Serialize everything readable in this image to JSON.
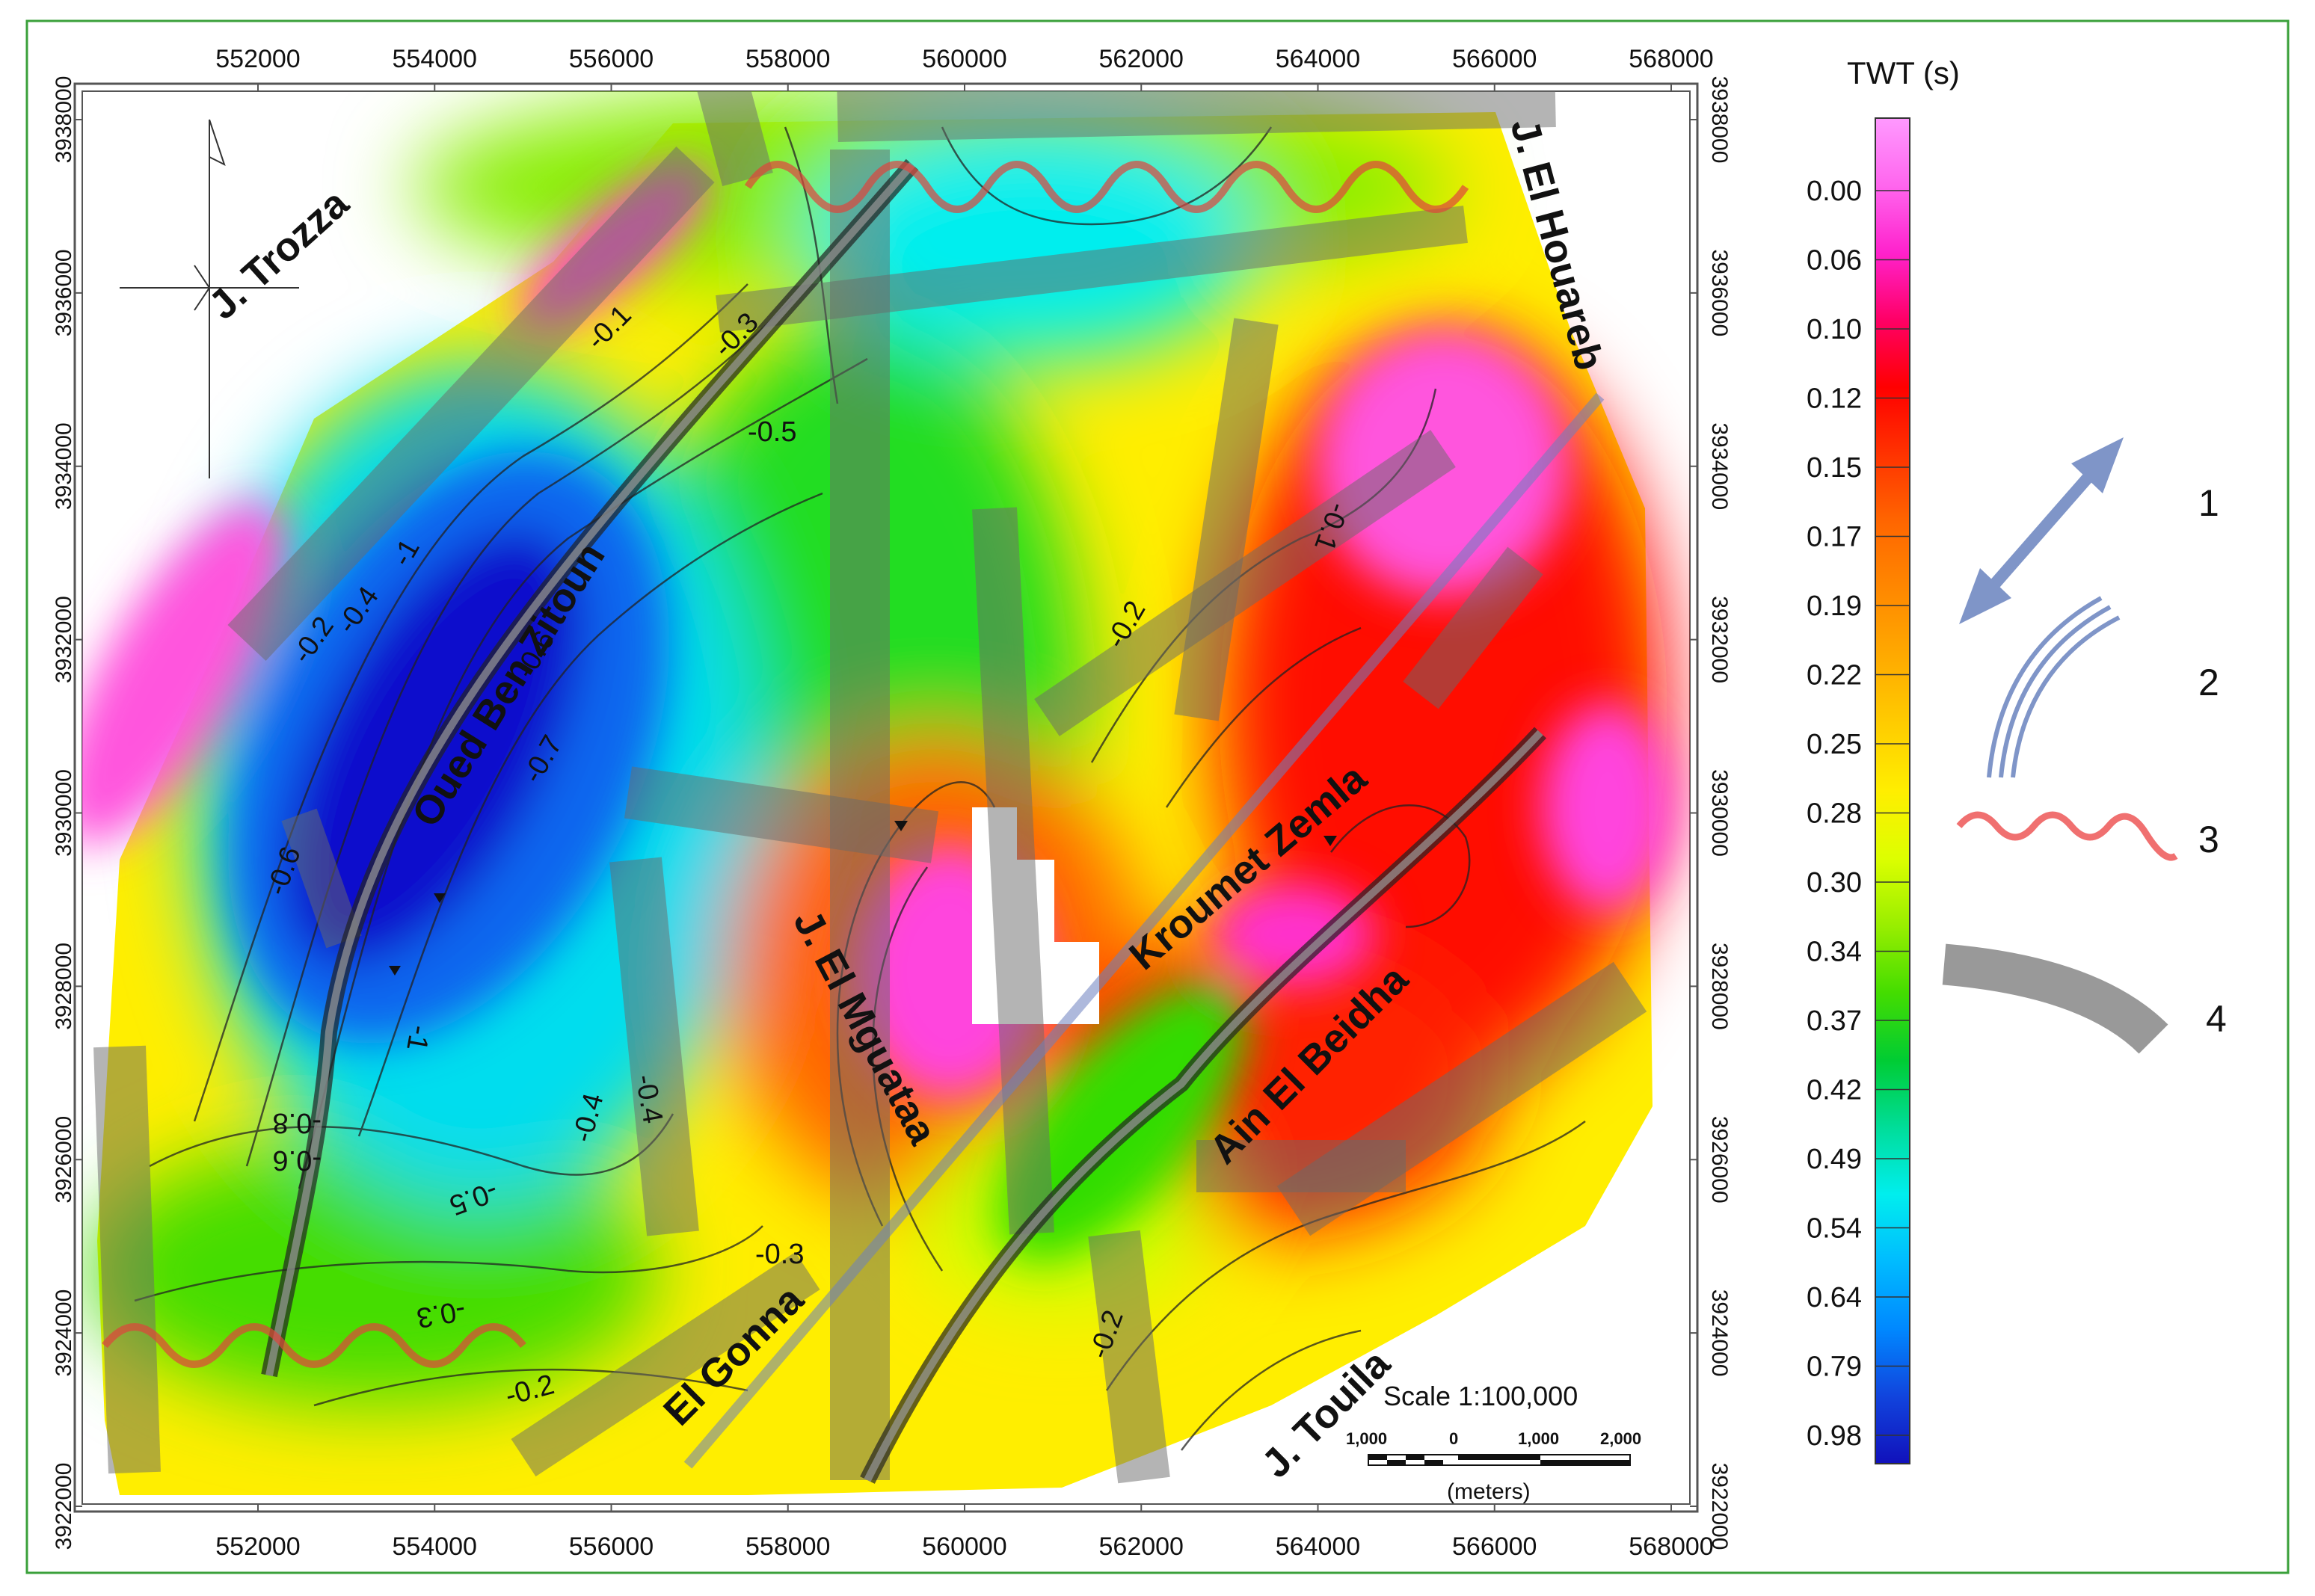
{
  "map": {
    "x_ticks": [
      "552000",
      "554000",
      "556000",
      "558000",
      "560000",
      "562000",
      "564000",
      "566000",
      "568000"
    ],
    "y_ticks": [
      "3938000",
      "3936000",
      "3934000",
      "3932000",
      "3930000",
      "3928000",
      "3926000",
      "3924000",
      "3922000"
    ],
    "place_labels": {
      "trozza": "J. Trozza",
      "houareb": "J. El Houareb",
      "oued_ben_zitoun": "Oued Ben Zitoun",
      "kroumet_zemla": "Kroumet Zemla",
      "el_mguataa": "J. El Mguataa",
      "ain_el_beidha": "Ain El Beidha",
      "el_gonna": "El Gonna",
      "touila": "J. Touila"
    },
    "contour_labels": [
      "-0.1",
      "-0.3",
      "-0.5",
      "-0.2",
      "-0.4",
      "-0.6",
      "-0.7",
      "-0.6",
      "-0.8",
      "-0.6",
      "-0.5",
      "-0.4",
      "-0.4",
      "-0.3",
      "-0.3",
      "-0.2",
      "-0.2",
      "-0.1",
      "-0.2",
      "-1",
      "-1"
    ],
    "scale": {
      "title": "Scale 1:100,000",
      "labels": [
        "1,000",
        "0",
        "1,000",
        "2,000"
      ],
      "unit": "(meters)"
    }
  },
  "legend": {
    "title": "TWT (s)",
    "values": [
      "0.00",
      "0.06",
      "0.10",
      "0.12",
      "0.15",
      "0.17",
      "0.19",
      "0.22",
      "0.25",
      "0.28",
      "0.30",
      "0.34",
      "0.37",
      "0.42",
      "0.49",
      "0.54",
      "0.64",
      "0.79",
      "0.98"
    ],
    "colors": [
      "#ff99ff",
      "#ff66ee",
      "#ff22cc",
      "#ff0066",
      "#ff0000",
      "#ff3300",
      "#ff6600",
      "#ff8800",
      "#ffaa00",
      "#ffcc00",
      "#ffee00",
      "#ddff00",
      "#99ee00",
      "#44dd00",
      "#00cc33",
      "#00dd99",
      "#00eeee",
      "#00bbff",
      "#0088ff",
      "#1144dd",
      "#1111bb"
    ],
    "items": [
      {
        "number": "1",
        "icon": "double-arrow-icon"
      },
      {
        "number": "2",
        "icon": "triple-line-icon"
      },
      {
        "number": "3",
        "icon": "wavy-line-icon"
      },
      {
        "number": "4",
        "icon": "thick-band-icon"
      }
    ]
  }
}
